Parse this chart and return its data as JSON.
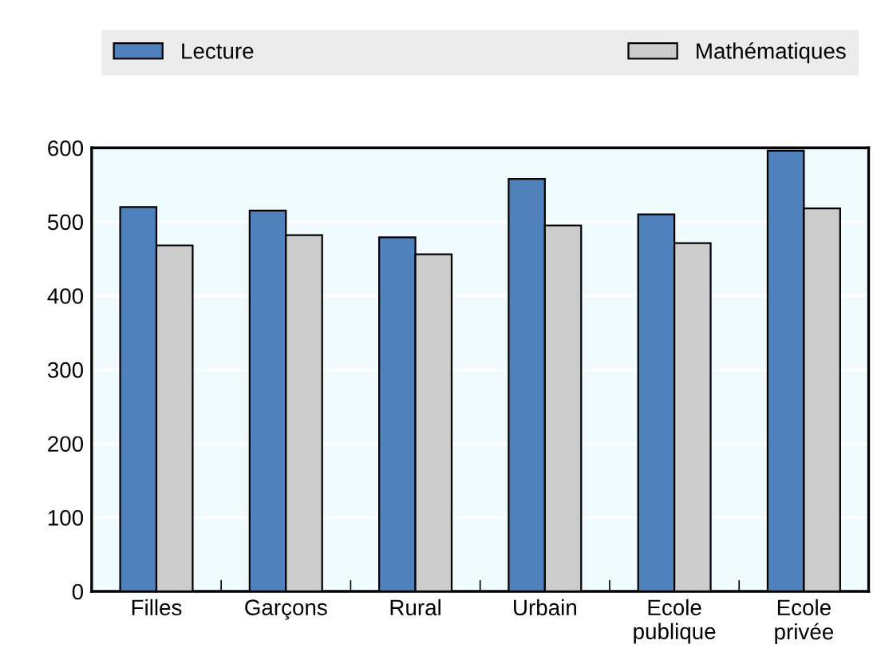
{
  "chart_data": {
    "type": "bar",
    "categories": [
      "Filles",
      "Garçons",
      "Rural",
      "Urbain",
      "Ecole\npublique",
      "Ecole\nprivée"
    ],
    "series": [
      {
        "name": "Lecture",
        "color": "#4f81bd",
        "values": [
          520,
          515,
          479,
          558,
          510,
          596
        ]
      },
      {
        "name": "Mathématiques",
        "color": "#cccccc",
        "values": [
          468,
          482,
          456,
          495,
          471,
          518
        ]
      }
    ],
    "ylim": [
      0,
      600
    ],
    "yticks": [
      0,
      100,
      200,
      300,
      400,
      500,
      600
    ],
    "grid": "y",
    "legend": "top"
  }
}
